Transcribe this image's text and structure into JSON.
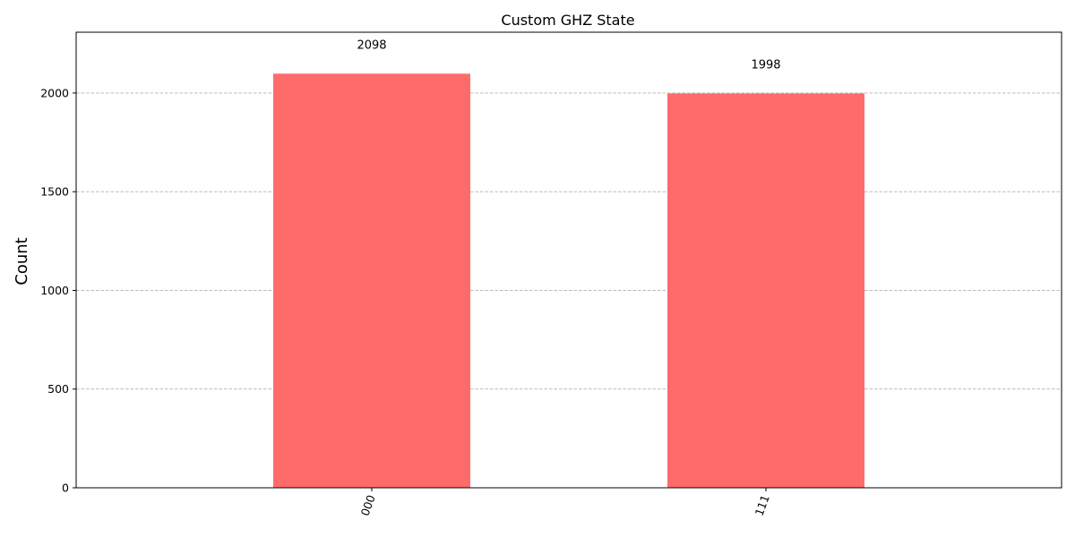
{
  "chart_data": {
    "type": "bar",
    "title": "Custom GHZ State",
    "xlabel": "",
    "ylabel": "Count",
    "categories": [
      "000",
      "111"
    ],
    "values": [
      2098,
      1998
    ],
    "data_labels": [
      "2098",
      "1998"
    ],
    "yticks": [
      0,
      500,
      1000,
      1500,
      2000
    ],
    "ytick_labels": [
      "0",
      "500",
      "1000",
      "1500",
      "2000"
    ],
    "ylim": [
      0,
      2308
    ],
    "grid": "y-dashed",
    "bar_color": "#ff6b6b",
    "xtick_rotation": "70deg"
  }
}
